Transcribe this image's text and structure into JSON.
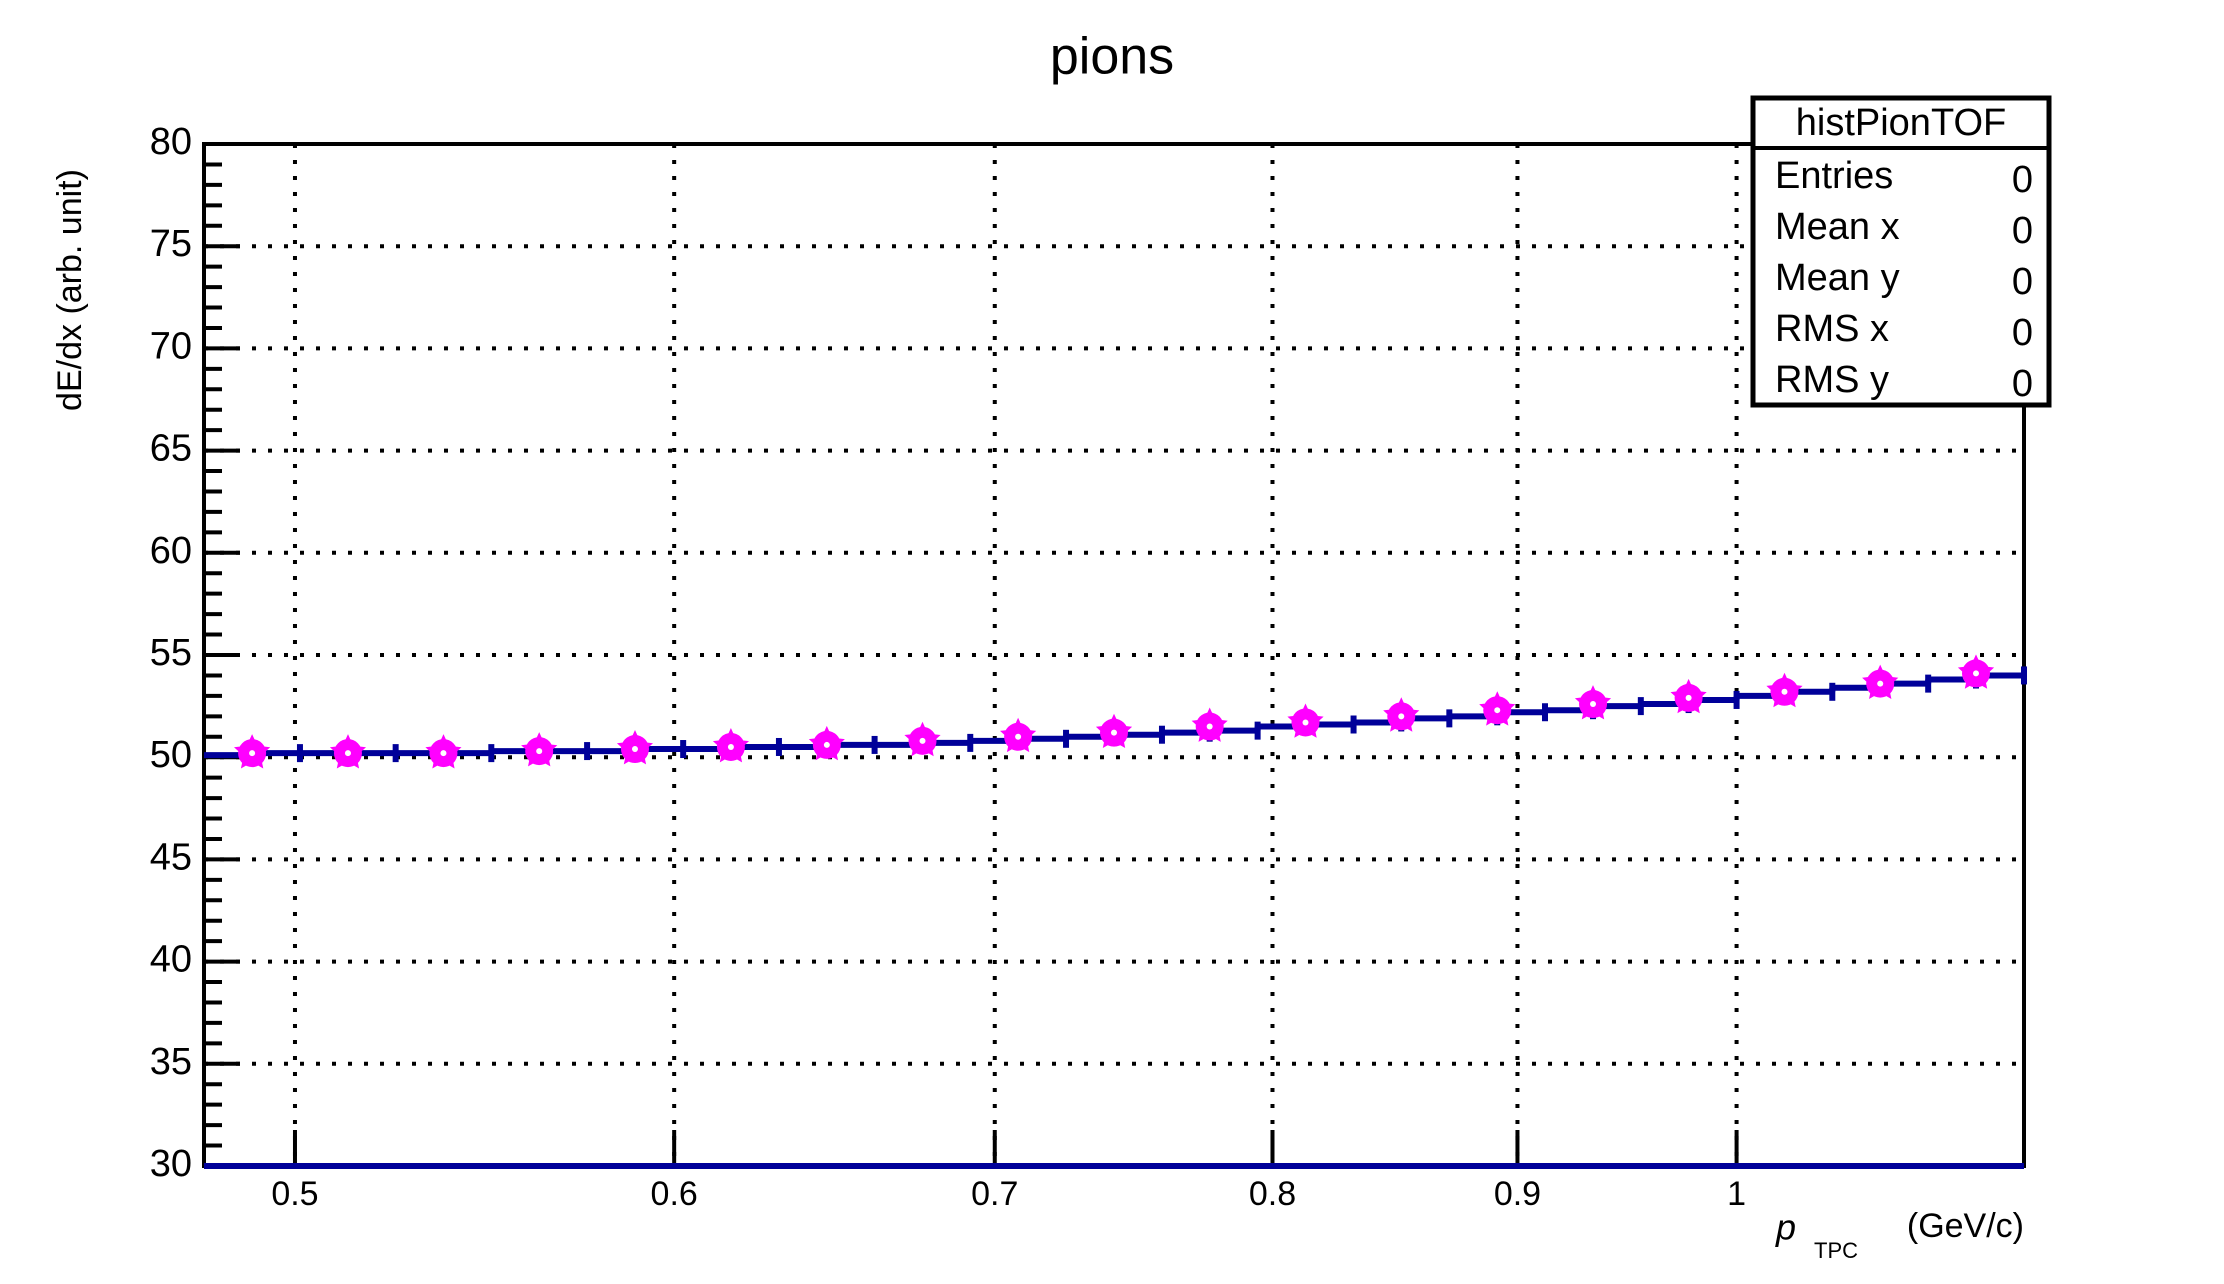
{
  "chart_data": {
    "type": "histogram",
    "title": "pions",
    "ylabel": "dE/dx (arb. unit)",
    "xlabel": {
      "symbol": "p",
      "subscript": "TPC",
      "unit": "(GeV/c)"
    },
    "xscale": "log",
    "xlim": [
      0.4786,
      1.1482
    ],
    "xticks": [
      0.5,
      0.6,
      0.7,
      0.8,
      0.9,
      1
    ],
    "ylim": [
      30,
      80
    ],
    "yticks": [
      30,
      35,
      40,
      45,
      50,
      55,
      60,
      65,
      70,
      75,
      80
    ],
    "grid": true,
    "histogram": {
      "name": "histPionTOF",
      "color": "#000099",
      "bins": [
        0.4786,
        0.4898,
        0.5012,
        0.5129,
        0.5248,
        0.537,
        0.5495,
        0.5623,
        0.5754,
        0.5888,
        0.6026,
        0.6166,
        0.631,
        0.6457,
        0.6607,
        0.6761,
        0.6918,
        0.7079,
        0.7244,
        0.7413,
        0.7586,
        0.7762,
        0.7943,
        0.8128,
        0.8318,
        0.8511,
        0.871,
        0.8913,
        0.912,
        0.9333,
        0.955,
        0.9772,
        1.0,
        1.0233,
        1.0471,
        1.0715,
        1.0965,
        1.122,
        1.1482
      ],
      "counts": [
        50.1,
        50.2,
        50.2,
        50.2,
        50.2,
        50.2,
        50.3,
        50.3,
        50.3,
        50.4,
        50.4,
        50.5,
        50.5,
        50.6,
        50.6,
        50.7,
        50.8,
        50.9,
        51.0,
        51.1,
        51.2,
        51.3,
        51.5,
        51.6,
        51.7,
        51.9,
        52.0,
        52.2,
        52.3,
        52.5,
        52.6,
        52.8,
        53.0,
        53.2,
        53.4,
        53.6,
        53.8,
        54.0
      ]
    },
    "markers": {
      "color": "#ff00ff",
      "x": [
        0.4898,
        0.5129,
        0.537,
        0.5623,
        0.5888,
        0.6166,
        0.6457,
        0.6761,
        0.7079,
        0.7413,
        0.7762,
        0.8128,
        0.8511,
        0.8913,
        0.9333,
        0.9772,
        1.0233,
        1.0715,
        1.122
      ],
      "values": [
        50.2,
        50.2,
        50.2,
        50.3,
        50.4,
        50.5,
        50.6,
        50.8,
        51.0,
        51.2,
        51.5,
        51.7,
        52.0,
        52.3,
        52.6,
        52.9,
        53.2,
        53.6,
        54.1
      ]
    },
    "stats": {
      "title": "histPionTOF",
      "rows": [
        {
          "label": "Entries",
          "value": 0
        },
        {
          "label": "Mean x",
          "value": 0
        },
        {
          "label": "Mean y",
          "value": 0
        },
        {
          "label": "RMS x",
          "value": 0
        },
        {
          "label": "RMS y",
          "value": 0
        }
      ]
    }
  }
}
